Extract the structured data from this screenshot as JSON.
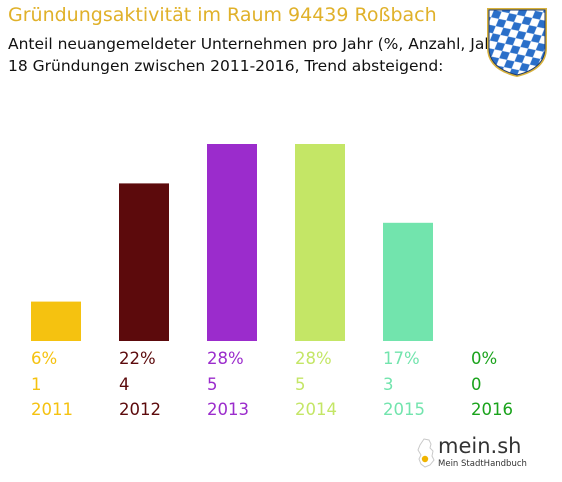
{
  "header": {
    "title": "Gründungsaktivität im Raum 94439 Roßbach",
    "subtitle_line1": "Anteil neuangemeldeter Unternehmen pro Jahr (%, Anzahl, Jahr)",
    "subtitle_line2": "18 Gründungen zwischen 2011-2016, Trend absteigend:"
  },
  "crest": {
    "icon": "bavarian-crest-icon",
    "colors": [
      "#2a6fc9",
      "#ffffff"
    ]
  },
  "chart_data": {
    "type": "bar",
    "categories": [
      "2011",
      "2012",
      "2013",
      "2014",
      "2015",
      "2016"
    ],
    "percent_labels": [
      "6%",
      "22%",
      "28%",
      "28%",
      "17%",
      "0%"
    ],
    "values": [
      1,
      4,
      5,
      5,
      3,
      0
    ],
    "colors": [
      "#f5c210",
      "#5c0a0c",
      "#9b2ccc",
      "#c4e666",
      "#72e4ad",
      "#1aa31c"
    ],
    "title": "Gründungsaktivität im Raum 94439 Roßbach",
    "xlabel": "",
    "ylabel": "",
    "ylim": [
      0,
      5
    ],
    "grid": false,
    "legend": "none"
  },
  "footer": {
    "logo_text": "mein.sh",
    "logo_subtext": "Mein StadtHandbuch"
  }
}
